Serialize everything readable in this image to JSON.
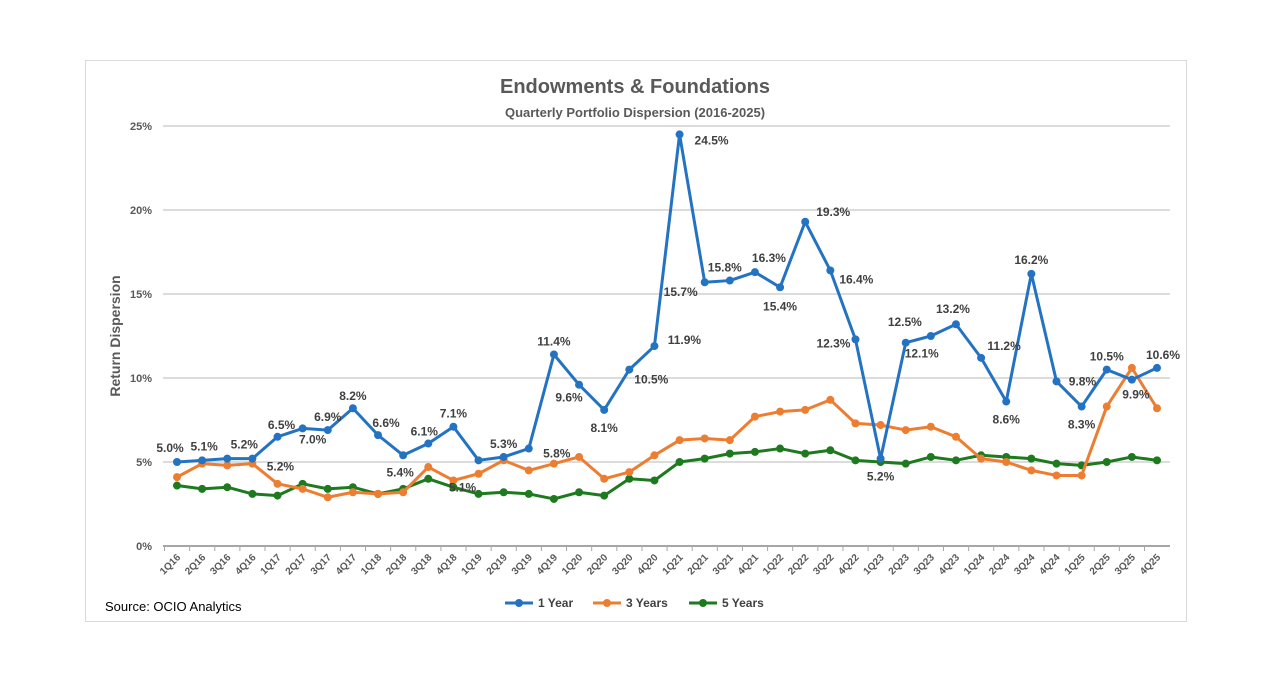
{
  "chart_data": {
    "type": "line",
    "title": "Endowments & Foundations",
    "subtitle": "Quarterly Portfolio Dispersion (2016-2025)",
    "xlabel": "",
    "ylabel": "Return Dispersion",
    "ylim": [
      0,
      25
    ],
    "yticks": [
      "0%",
      "5%",
      "10%",
      "15%",
      "20%",
      "25%"
    ],
    "grid": true,
    "legend_position": "bottom",
    "source": "Source: OCIO Analytics",
    "categories": [
      "1Q16",
      "2Q16",
      "3Q16",
      "4Q16",
      "1Q17",
      "2Q17",
      "3Q17",
      "4Q17",
      "1Q18",
      "2Q18",
      "3Q18",
      "4Q18",
      "1Q19",
      "2Q19",
      "3Q19",
      "4Q19",
      "1Q20",
      "2Q20",
      "3Q20",
      "4Q20",
      "1Q21",
      "2Q21",
      "3Q21",
      "4Q21",
      "1Q22",
      "2Q22",
      "3Q22",
      "4Q22",
      "1Q23",
      "2Q23",
      "3Q23",
      "4Q23",
      "1Q24",
      "2Q24",
      "3Q24",
      "4Q24",
      "1Q25",
      "2Q25",
      "3Q25",
      "4Q25"
    ],
    "series": [
      {
        "name": "1 Year",
        "color": "#2473c2",
        "labeled": true,
        "values": [
          5.0,
          5.1,
          5.2,
          5.2,
          6.5,
          7.0,
          6.9,
          8.2,
          6.6,
          5.4,
          6.1,
          7.1,
          5.1,
          5.3,
          5.8,
          11.4,
          9.6,
          8.1,
          10.5,
          11.9,
          24.5,
          15.7,
          15.8,
          16.3,
          15.4,
          19.3,
          16.4,
          12.3,
          5.2,
          12.1,
          12.5,
          13.2,
          11.2,
          8.6,
          16.2,
          9.8,
          8.3,
          10.5,
          9.9,
          10.6
        ],
        "labels": [
          "5.0%",
          "5.1%",
          "5.2%",
          "5.2%",
          "6.5%",
          "7.0%",
          "6.9%",
          "8.2%",
          "6.6%",
          "5.4%",
          "6.1%",
          "7.1%",
          "5.1%",
          "5.3%",
          "5.8%",
          "11.4%",
          "9.6%",
          "8.1%",
          "10.5%",
          "11.9%",
          "24.5%",
          "15.7%",
          "15.8%",
          "16.3%",
          "15.4%",
          "19.3%",
          "16.4%",
          "12.3%",
          "5.2%",
          "12.1%",
          "12.5%",
          "13.2%",
          "11.2%",
          "8.6%",
          "16.2%",
          "9.8%",
          "8.3%",
          "10.5%",
          "9.9%",
          "10.6%"
        ]
      },
      {
        "name": "3 Years",
        "color": "#ed7d31",
        "labeled": false,
        "values": [
          4.1,
          4.9,
          4.8,
          4.9,
          3.7,
          3.4,
          2.9,
          3.2,
          3.1,
          3.2,
          4.7,
          3.9,
          4.3,
          5.1,
          4.5,
          4.9,
          5.3,
          4.0,
          4.4,
          5.4,
          6.3,
          6.4,
          6.3,
          7.7,
          8.0,
          8.1,
          8.7,
          7.3,
          7.2,
          6.9,
          7.1,
          6.5,
          5.2,
          5.0,
          4.5,
          4.2,
          4.2,
          8.3,
          10.6,
          8.2
        ]
      },
      {
        "name": "5 Years",
        "color": "#1e7a1e",
        "labeled": false,
        "values": [
          3.6,
          3.4,
          3.5,
          3.1,
          3.0,
          3.7,
          3.4,
          3.5,
          3.1,
          3.4,
          4.0,
          3.5,
          3.1,
          3.2,
          3.1,
          2.8,
          3.2,
          3.0,
          4.0,
          3.9,
          5.0,
          5.2,
          5.5,
          5.6,
          5.8,
          5.5,
          5.7,
          5.1,
          5.0,
          4.9,
          5.3,
          5.1,
          5.4,
          5.3,
          5.2,
          4.9,
          4.8,
          5.0,
          5.3,
          5.1
        ]
      }
    ]
  }
}
